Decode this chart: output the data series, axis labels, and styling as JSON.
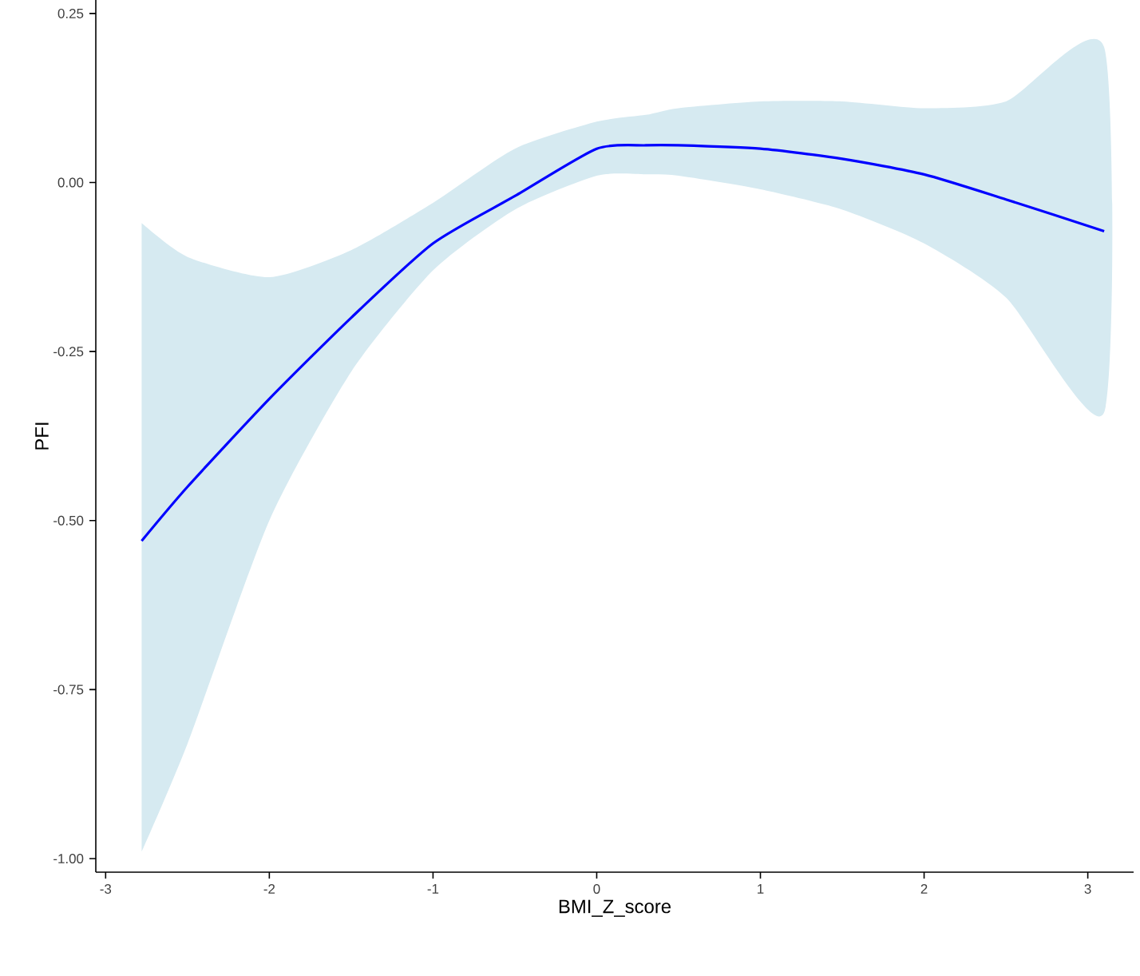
{
  "chart_data": {
    "type": "line",
    "xlabel": "BMI_Z_score",
    "ylabel": "PFI",
    "xlim": [
      -3.06,
      3.28
    ],
    "ylim": [
      -1.02,
      0.27
    ],
    "xticks": [
      -3,
      -2,
      -1,
      0,
      1,
      2,
      3
    ],
    "yticks": [
      {
        "value": -1,
        "label": "-1.00"
      },
      {
        "value": -0.75,
        "label": "-0.75"
      },
      {
        "value": -0.5,
        "label": "-0.50"
      },
      {
        "value": -0.25,
        "label": "-0.25"
      },
      {
        "value": 0,
        "label": "0.00"
      },
      {
        "value": 0.25,
        "label": "0.25"
      }
    ],
    "grid": false,
    "legend": false,
    "marker": "none",
    "line_style": "solid",
    "series": [
      {
        "color": "#0000ff",
        "x": [
          -2.78,
          -2.5,
          -2,
          -1.5,
          -1,
          -0.5,
          0,
          0.3,
          0.5,
          1,
          1.5,
          2,
          2.5,
          3.1
        ],
        "values": [
          -0.53,
          -0.45,
          -0.32,
          -0.2,
          -0.09,
          -0.02,
          0.05,
          0.055,
          0.055,
          0.05,
          0.035,
          0.012,
          -0.025,
          -0.072
        ],
        "lower": [
          -0.99,
          -0.83,
          -0.5,
          -0.28,
          -0.13,
          -0.04,
          0.01,
          0.012,
          0.01,
          -0.01,
          -0.04,
          -0.09,
          -0.17,
          -0.34
        ],
        "upper": [
          -0.06,
          -0.11,
          -0.14,
          -0.1,
          -0.03,
          0.05,
          0.09,
          0.1,
          0.11,
          0.12,
          0.12,
          0.11,
          0.12,
          0.2
        ]
      }
    ]
  }
}
